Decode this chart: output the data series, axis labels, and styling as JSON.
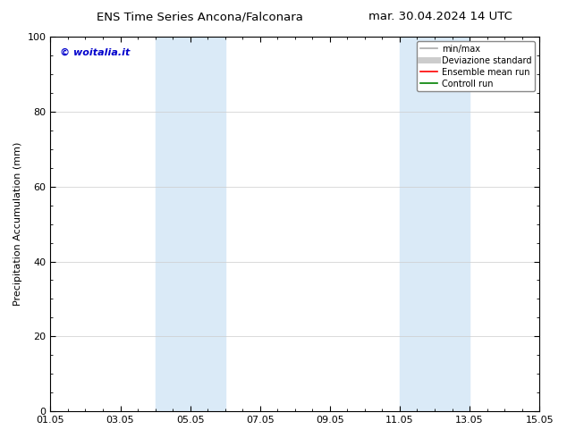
{
  "title_left": "ENS Time Series Ancona/Falconara",
  "title_right": "mar. 30.04.2024 14 UTC",
  "ylabel": "Precipitation Accumulation (mm)",
  "ylim": [
    0,
    100
  ],
  "xlim_start": 0.0,
  "xlim_end": 14.0,
  "xtick_positions": [
    0,
    2,
    4,
    6,
    8,
    10,
    12,
    14
  ],
  "xtick_labels": [
    "01.05",
    "03.05",
    "05.05",
    "07.05",
    "09.05",
    "11.05",
    "13.05",
    "15.05"
  ],
  "ytick_positions": [
    0,
    20,
    40,
    60,
    80,
    100
  ],
  "ytick_labels": [
    "0",
    "20",
    "40",
    "60",
    "80",
    "100"
  ],
  "shaded_regions": [
    {
      "xmin": 3.0,
      "xmax": 5.0,
      "color": "#daeaf7"
    },
    {
      "xmin": 10.0,
      "xmax": 12.0,
      "color": "#daeaf7"
    }
  ],
  "copyright_text": "© woitalia.it",
  "copyright_color": "#0000cc",
  "background_color": "#ffffff",
  "plot_bg_color": "#ffffff",
  "grid_color": "#cccccc",
  "legend_items": [
    {
      "label": "min/max",
      "color": "#aaaaaa",
      "lw": 1.2,
      "style": "solid"
    },
    {
      "label": "Deviazione standard",
      "color": "#cccccc",
      "lw": 5,
      "style": "solid"
    },
    {
      "label": "Ensemble mean run",
      "color": "#ff0000",
      "lw": 1.2,
      "style": "solid"
    },
    {
      "label": "Controll run",
      "color": "#008000",
      "lw": 1.2,
      "style": "solid"
    }
  ],
  "title_fontsize": 9.5,
  "axis_fontsize": 8,
  "tick_fontsize": 8,
  "legend_fontsize": 7,
  "copyright_fontsize": 8,
  "border_color": "#000000"
}
